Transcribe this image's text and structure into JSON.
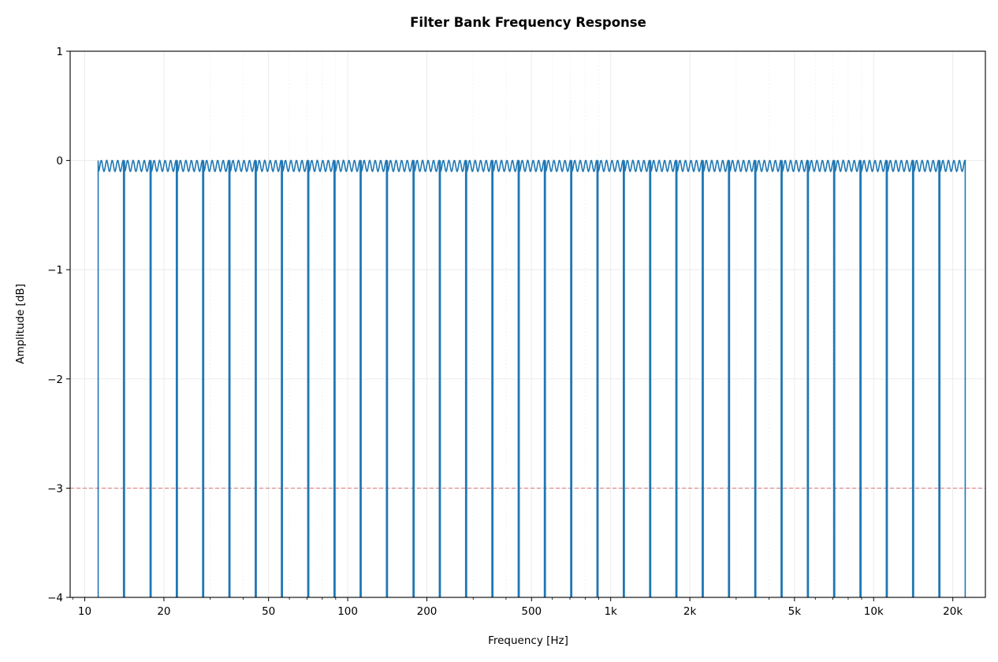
{
  "chart_data": {
    "type": "line",
    "title": "Filter Bank Frequency Response",
    "xlabel": "Frequency [Hz]",
    "ylabel": "Amplitude [dB]",
    "xscale": "log",
    "xlim": [
      8.8,
      26600
    ],
    "ylim": [
      -4,
      1
    ],
    "grid": true,
    "x_ticks": [
      10,
      20,
      50,
      100,
      200,
      500,
      1000,
      2000,
      5000,
      10000,
      20000
    ],
    "x_tick_labels": [
      "10",
      "20",
      "50",
      "100",
      "200",
      "500",
      "1k",
      "2k",
      "5k",
      "10k",
      "20k"
    ],
    "y_ticks": [
      1,
      0,
      -1,
      -2,
      -3,
      -4
    ],
    "y_tick_labels": [
      "1",
      "0",
      "−1",
      "−2",
      "−3",
      "−4"
    ],
    "series": [
      {
        "color": "#1f77b4",
        "band_edges_hz": [
          11.2,
          14.1,
          17.8,
          22.4,
          28.2,
          35.5,
          44.7,
          56.2,
          70.8,
          89.1,
          112,
          141,
          178,
          224,
          282,
          355,
          447,
          562,
          708,
          891,
          1122,
          1413,
          1778,
          2239,
          2818,
          3548,
          4467,
          5623,
          7079,
          8913,
          11220,
          14125,
          17783,
          22387
        ],
        "passband_ripple_db": [
          -0.1,
          0
        ]
      }
    ],
    "reference_line": {
      "y": -3,
      "color": "#d62728",
      "style": "dashed"
    }
  }
}
